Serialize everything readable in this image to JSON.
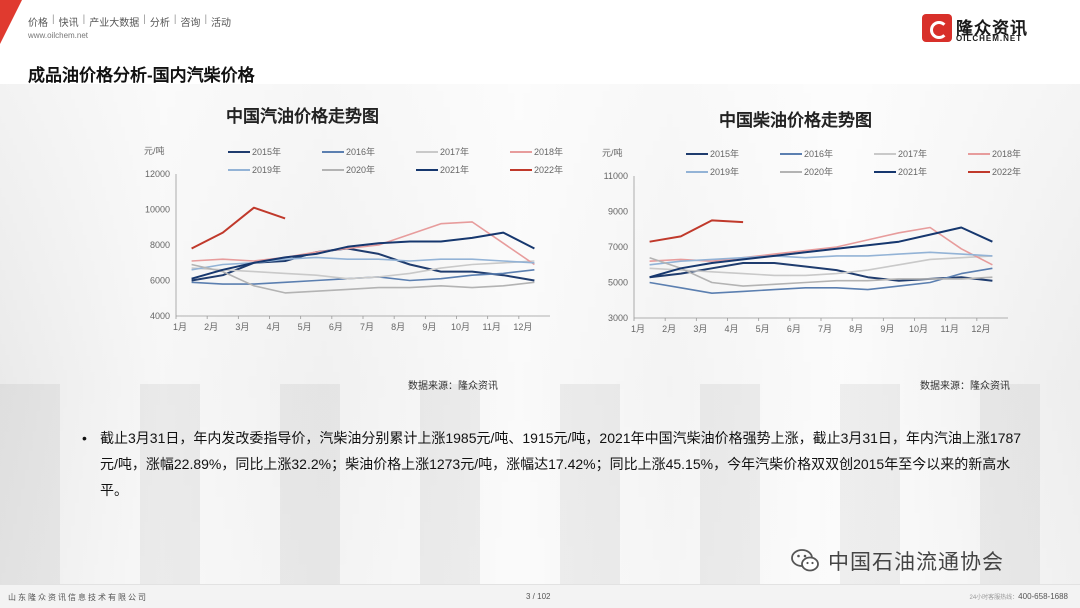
{
  "header": {
    "nav": [
      "价格",
      "快讯",
      "产业大数据",
      "分析",
      "咨询",
      "活动"
    ],
    "url": "www.oilchem.net",
    "logo_cn": "隆众资讯",
    "logo_en": "OILCHEM.NET"
  },
  "page_title": "成品油价格分析-国内汽柴价格",
  "left_chart_title": "中国汽油价格走势图",
  "right_chart_title": "中国柴油价格走势图",
  "source_left": "数据来源：隆众资讯",
  "source_right": "数据来源：隆众资讯",
  "bullet_text": "截止3月31日，年内发改委指导价，汽柴油分别累计上涨1985元/吨、1915元/吨，2021年中国汽柴油价格强势上涨，截止3月31日，年内汽油上涨1787元/吨，涨幅22.89%，同比上涨32.2%；柴油价格上涨1273元/吨，涨幅达17.42%；同比上涨45.15%，今年汽柴价格双双创2015年至今以来的新高水平。",
  "wechat_label": "中国石油流通协会",
  "footer": {
    "company": "山东隆众资讯信息技术有限公司",
    "page": "3 / 102",
    "hotline_label": "24小时客服热线：",
    "hotline": "400-658-1688"
  },
  "colors": {
    "2015": "#1f3c6e",
    "2016": "#5b7fb0",
    "2017": "#c9c9c9",
    "2018": "#e79c9c",
    "2019": "#93b3d6",
    "2020": "#b3b3b3",
    "2021": "#16376e",
    "2022": "#c0392b"
  },
  "chart_data": [
    {
      "type": "line",
      "title": "中国汽油价格走势图",
      "ylabel": "元/吨",
      "x": [
        "1月",
        "2月",
        "3月",
        "4月",
        "5月",
        "6月",
        "7月",
        "8月",
        "9月",
        "10月",
        "11月",
        "12月"
      ],
      "ylim": [
        4000,
        12000
      ],
      "yticks": [
        4000,
        6000,
        8000,
        10000,
        12000
      ],
      "legend_position": "top",
      "series": [
        {
          "name": "2015年",
          "values": [
            6000,
            6300,
            7000,
            7100,
            7600,
            7800,
            7500,
            6900,
            6500,
            6500,
            6300,
            6000
          ]
        },
        {
          "name": "2016年",
          "values": [
            5900,
            5800,
            5800,
            5900,
            6000,
            6100,
            6200,
            6000,
            6100,
            6300,
            6400,
            6600
          ]
        },
        {
          "name": "2017年",
          "values": [
            6700,
            6600,
            6500,
            6400,
            6300,
            6100,
            6200,
            6400,
            6700,
            6900,
            7000,
            7100
          ]
        },
        {
          "name": "2018年",
          "values": [
            7100,
            7200,
            7100,
            7300,
            7600,
            7800,
            8000,
            8600,
            9200,
            9300,
            8100,
            6900
          ]
        },
        {
          "name": "2019年",
          "values": [
            6600,
            6900,
            7000,
            7200,
            7300,
            7200,
            7200,
            7100,
            7200,
            7200,
            7100,
            7000
          ]
        },
        {
          "name": "2020年",
          "values": [
            6900,
            6500,
            5700,
            5300,
            5400,
            5500,
            5600,
            5600,
            5700,
            5600,
            5700,
            5900
          ]
        },
        {
          "name": "2021年",
          "values": [
            6100,
            6600,
            7000,
            7300,
            7500,
            7900,
            8100,
            8200,
            8200,
            8400,
            8700,
            7800
          ]
        },
        {
          "name": "2022年",
          "values": [
            7800,
            8700,
            10100,
            9500,
            null,
            null,
            null,
            null,
            null,
            null,
            null,
            null
          ]
        }
      ]
    },
    {
      "type": "line",
      "title": "中国柴油价格走势图",
      "ylabel": "元/吨",
      "x": [
        "1月",
        "2月",
        "3月",
        "4月",
        "5月",
        "6月",
        "7月",
        "8月",
        "9月",
        "10月",
        "11月",
        "12月"
      ],
      "ylim": [
        3000,
        11000
      ],
      "yticks": [
        3000,
        5000,
        7000,
        9000,
        11000
      ],
      "legend_position": "top",
      "series": [
        {
          "name": "2015年",
          "values": [
            5300,
            5500,
            5800,
            6100,
            6100,
            5900,
            5700,
            5300,
            5100,
            5200,
            5300,
            5100
          ]
        },
        {
          "name": "2016年",
          "values": [
            5000,
            4700,
            4400,
            4500,
            4600,
            4700,
            4700,
            4600,
            4800,
            5000,
            5500,
            5800
          ]
        },
        {
          "name": "2017年",
          "values": [
            5800,
            5700,
            5600,
            5500,
            5400,
            5400,
            5500,
            5700,
            6000,
            6300,
            6400,
            6500
          ]
        },
        {
          "name": "2018年",
          "values": [
            6200,
            6300,
            6200,
            6400,
            6600,
            6800,
            7000,
            7400,
            7800,
            8100,
            6900,
            6000
          ]
        },
        {
          "name": "2019年",
          "values": [
            6000,
            6200,
            6300,
            6400,
            6500,
            6400,
            6500,
            6500,
            6600,
            6700,
            6600,
            6500
          ]
        },
        {
          "name": "2020年",
          "values": [
            6400,
            5800,
            5000,
            4800,
            4900,
            5000,
            5100,
            5100,
            5200,
            5200,
            5200,
            5300
          ]
        },
        {
          "name": "2021年",
          "values": [
            5300,
            5800,
            6100,
            6300,
            6500,
            6700,
            6900,
            7100,
            7300,
            7700,
            8100,
            7300
          ]
        },
        {
          "name": "2022年",
          "values": [
            7300,
            7600,
            8500,
            8400,
            null,
            null,
            null,
            null,
            null,
            null,
            null,
            null
          ]
        }
      ]
    }
  ]
}
